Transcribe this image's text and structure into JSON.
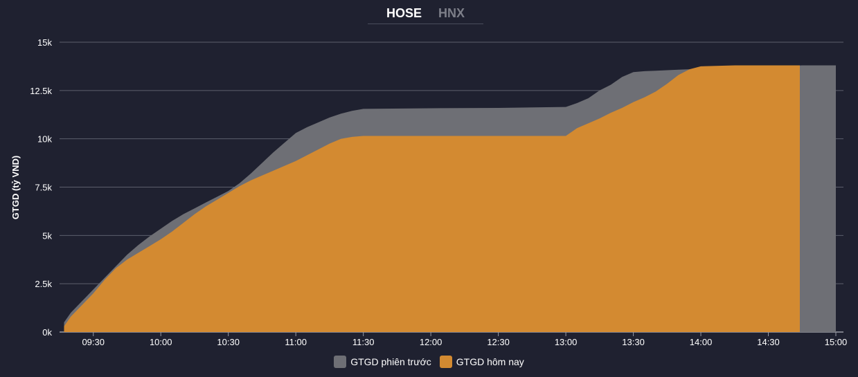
{
  "tabs": [
    {
      "label": "HOSE",
      "active": true
    },
    {
      "label": "HNX",
      "active": false
    }
  ],
  "chart_data": {
    "type": "area",
    "ylabel": "GTGD (tỷ VND)",
    "y_ticks": [
      "0k",
      "2.5k",
      "5k",
      "7.5k",
      "10k",
      "12.5k",
      "15k"
    ],
    "y_tick_values": [
      0,
      2500,
      5000,
      7500,
      10000,
      12500,
      15000
    ],
    "ylim": [
      0,
      15000
    ],
    "x_ticks": [
      "09:30",
      "10:00",
      "10:30",
      "11:00",
      "11:30",
      "12:00",
      "12:30",
      "13:00",
      "13:30",
      "14:00",
      "14:30",
      "15:00"
    ],
    "xlim": [
      "09:15",
      "15:00"
    ],
    "grid": true,
    "legend_position": "bottom",
    "series": [
      {
        "name": "GTGD phiên trước",
        "color": "#6e6f75",
        "x": [
          "09:17",
          "09:20",
          "09:25",
          "09:30",
          "09:35",
          "09:40",
          "09:45",
          "09:50",
          "09:55",
          "10:00",
          "10:05",
          "10:10",
          "10:15",
          "10:20",
          "10:25",
          "10:30",
          "10:35",
          "10:40",
          "10:45",
          "10:50",
          "10:55",
          "11:00",
          "11:05",
          "11:10",
          "11:15",
          "11:20",
          "11:25",
          "11:30",
          "12:00",
          "12:30",
          "13:00",
          "13:05",
          "13:10",
          "13:15",
          "13:20",
          "13:25",
          "13:30",
          "13:35",
          "13:40",
          "13:50",
          "14:00",
          "14:30",
          "14:45",
          "15:00"
        ],
        "values": [
          500,
          1000,
          1600,
          2200,
          2800,
          3400,
          4000,
          4500,
          4950,
          5350,
          5750,
          6100,
          6400,
          6700,
          7000,
          7300,
          7700,
          8200,
          8750,
          9300,
          9800,
          10300,
          10600,
          10850,
          11100,
          11300,
          11450,
          11550,
          11580,
          11600,
          11650,
          11850,
          12100,
          12500,
          12800,
          13200,
          13450,
          13500,
          13520,
          13580,
          13620,
          13720,
          13800,
          13800
        ]
      },
      {
        "name": "GTGD hôm nay",
        "color": "#d38a31",
        "x": [
          "09:17",
          "09:20",
          "09:25",
          "09:30",
          "09:35",
          "09:40",
          "09:45",
          "09:50",
          "09:55",
          "10:00",
          "10:05",
          "10:10",
          "10:15",
          "10:20",
          "10:25",
          "10:30",
          "10:35",
          "10:40",
          "10:45",
          "10:50",
          "10:55",
          "11:00",
          "11:05",
          "11:10",
          "11:15",
          "11:20",
          "11:25",
          "11:30",
          "12:00",
          "12:30",
          "13:00",
          "13:05",
          "13:10",
          "13:15",
          "13:20",
          "13:25",
          "13:30",
          "13:35",
          "13:40",
          "13:45",
          "13:50",
          "13:55",
          "14:00",
          "14:15",
          "14:30",
          "14:44"
        ],
        "values": [
          300,
          800,
          1400,
          2000,
          2700,
          3300,
          3750,
          4100,
          4450,
          4800,
          5200,
          5650,
          6100,
          6500,
          6850,
          7200,
          7550,
          7850,
          8100,
          8350,
          8600,
          8850,
          9150,
          9450,
          9750,
          10000,
          10100,
          10150,
          10150,
          10150,
          10150,
          10550,
          10800,
          11050,
          11350,
          11600,
          11900,
          12150,
          12450,
          12850,
          13300,
          13600,
          13750,
          13800,
          13800,
          13800
        ]
      }
    ]
  }
}
